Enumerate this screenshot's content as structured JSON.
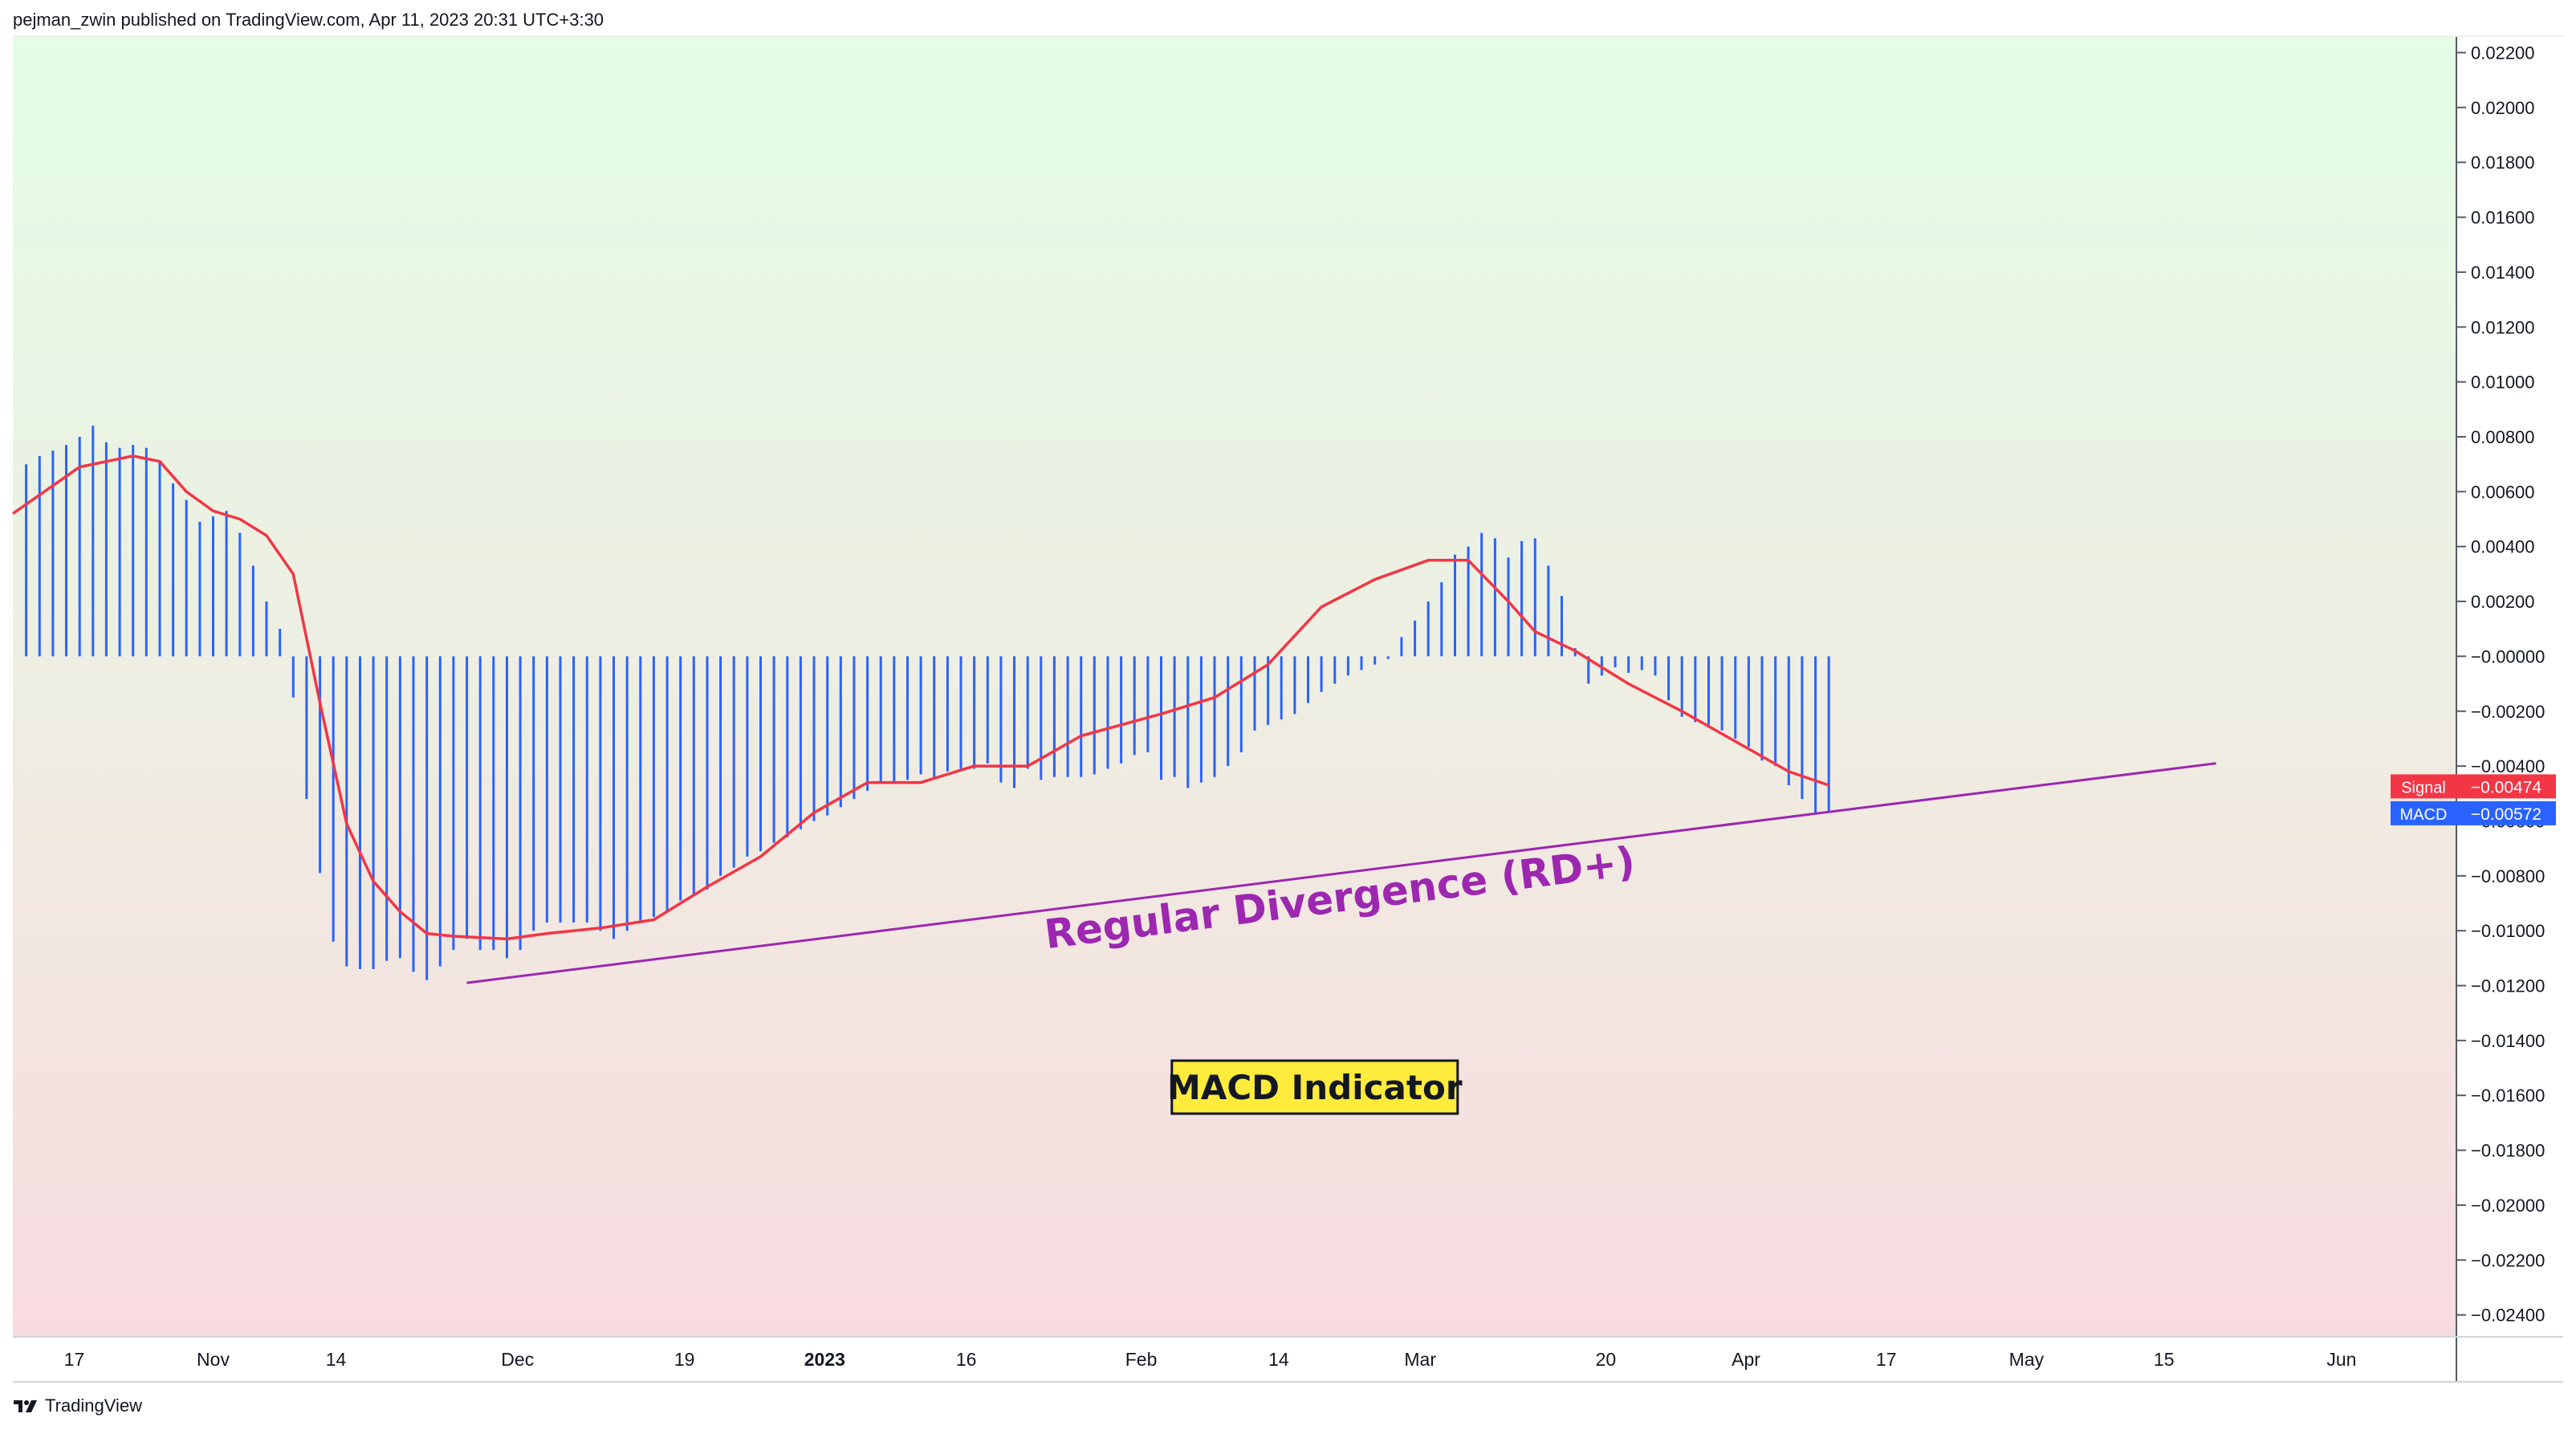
{
  "header": {
    "published_by": "pejman_zwin published on TradingView.com, Apr 11, 2023 20:31 UTC+3:30"
  },
  "footer": {
    "brand": "TradingView",
    "logo_icon": "tradingview-logo-icon"
  },
  "colors": {
    "bg_top": "#e3fde6",
    "bg_mid": "#efece1",
    "bg_bottom": "#f8dbe0",
    "histogram": "#2962ff",
    "signal": "#f23645",
    "divergence": "#9c27b0",
    "annotation_bg": "#ffeb3b"
  },
  "chart_data": {
    "type": "bar",
    "series": [
      {
        "name": "MACD",
        "style": "histogram",
        "x": [
          1,
          2,
          3,
          4,
          5,
          6,
          7,
          8,
          9,
          10,
          11,
          12,
          13,
          14,
          15,
          16,
          17,
          18,
          19,
          20,
          21,
          22,
          23,
          24,
          25,
          26,
          27,
          28,
          29,
          30,
          31,
          32,
          33,
          34,
          35,
          36,
          37,
          38,
          39,
          40,
          41,
          42,
          43,
          44,
          45,
          46,
          47,
          48,
          49,
          50,
          51,
          52,
          53,
          54,
          55,
          56,
          57,
          58,
          59,
          60,
          61,
          62,
          63,
          64,
          65,
          66,
          67,
          68,
          69,
          70,
          71,
          72,
          73,
          74,
          75,
          76,
          77,
          78,
          79,
          80,
          81,
          82,
          83,
          84,
          85,
          86,
          87,
          88,
          89,
          90,
          91,
          92,
          93,
          94,
          95,
          96,
          97,
          98,
          99,
          100,
          101,
          102,
          103,
          104,
          105,
          106,
          107,
          108,
          109,
          110,
          111,
          112,
          113,
          114,
          115,
          116,
          117,
          118,
          119,
          120,
          121,
          122,
          123,
          124,
          125,
          126,
          127,
          128,
          129,
          130,
          131,
          132,
          133,
          134,
          135,
          136
        ],
        "values": [
          0.007,
          0.0073,
          0.0075,
          0.0077,
          0.008,
          0.0084,
          0.0078,
          0.0076,
          0.0077,
          0.0076,
          0.0071,
          0.0063,
          0.0057,
          0.0049,
          0.0051,
          0.0053,
          0.0045,
          0.0033,
          0.002,
          0.001,
          -0.0015,
          -0.0052,
          -0.0079,
          -0.0104,
          -0.0113,
          -0.0114,
          -0.0114,
          -0.0111,
          -0.011,
          -0.0115,
          -0.0118,
          -0.0113,
          -0.0107,
          -0.0103,
          -0.0107,
          -0.0107,
          -0.011,
          -0.0107,
          -0.01,
          -0.0097,
          -0.0097,
          -0.0097,
          -0.0097,
          -0.01,
          -0.0103,
          -0.01,
          -0.0097,
          -0.0095,
          -0.0093,
          -0.0089,
          -0.0087,
          -0.0085,
          -0.008,
          -0.0077,
          -0.0073,
          -0.0071,
          -0.0068,
          -0.0066,
          -0.0063,
          -0.006,
          -0.0058,
          -0.0055,
          -0.0052,
          -0.0049,
          -0.0046,
          -0.0046,
          -0.0045,
          -0.0043,
          -0.0044,
          -0.0042,
          -0.0041,
          -0.0041,
          -0.0039,
          -0.0046,
          -0.0048,
          -0.0041,
          -0.0045,
          -0.0044,
          -0.0044,
          -0.0044,
          -0.0043,
          -0.0041,
          -0.0039,
          -0.0036,
          -0.0035,
          -0.0045,
          -0.0044,
          -0.0048,
          -0.0046,
          -0.0044,
          -0.004,
          -0.0035,
          -0.0027,
          -0.0025,
          -0.0023,
          -0.0021,
          -0.0017,
          -0.0013,
          -0.001,
          -0.0007,
          -0.0005,
          -0.0003,
          -0.0001,
          0.0007,
          0.0013,
          0.002,
          0.0027,
          0.0037,
          0.004,
          0.0045,
          0.0043,
          0.0036,
          0.0042,
          0.0043,
          0.0033,
          0.0022,
          0.0003,
          -0.001,
          -0.0007,
          -0.0004,
          -0.0006,
          -0.0005,
          -0.0007,
          -0.0016,
          -0.0022,
          -0.0024,
          -0.0025,
          -0.0027,
          -0.003,
          -0.0033,
          -0.0038,
          -0.004,
          -0.0047,
          -0.0052,
          -0.0057,
          -0.0057
        ]
      },
      {
        "name": "Signal",
        "style": "line",
        "x": [
          0,
          5,
          9,
          11,
          13,
          15,
          17,
          19,
          21,
          23,
          25,
          27,
          29,
          31,
          33,
          37,
          40,
          44,
          48,
          52,
          56,
          60,
          64,
          68,
          72,
          76,
          80,
          83,
          86,
          90,
          94,
          98,
          102,
          106,
          109,
          112,
          114,
          117,
          121,
          125,
          129,
          133,
          136
        ],
        "values": [
          0.0052,
          0.0069,
          0.0073,
          0.0071,
          0.006,
          0.0053,
          0.005,
          0.0044,
          0.003,
          -0.0017,
          -0.0061,
          -0.0082,
          -0.0093,
          -0.0101,
          -0.0102,
          -0.0103,
          -0.0101,
          -0.0099,
          -0.0096,
          -0.0084,
          -0.0073,
          -0.0057,
          -0.0046,
          -0.0046,
          -0.004,
          -0.004,
          -0.0029,
          -0.0025,
          -0.0021,
          -0.0015,
          -0.0003,
          0.0018,
          0.0028,
          0.0035,
          0.0035,
          0.002,
          0.0009,
          0.0002,
          -0.001,
          -0.002,
          -0.0031,
          -0.0042,
          -0.0047
        ]
      }
    ],
    "x_ticks": [
      {
        "x": 4.6,
        "label": "17"
      },
      {
        "x": 15.0,
        "label": "Nov"
      },
      {
        "x": 24.2,
        "label": "14"
      },
      {
        "x": 37.8,
        "label": "Dec"
      },
      {
        "x": 50.3,
        "label": "19"
      },
      {
        "x": 60.8,
        "label": "2023"
      },
      {
        "x": 71.4,
        "label": "16"
      },
      {
        "x": 84.5,
        "label": "Feb"
      },
      {
        "x": 94.8,
        "label": "14"
      },
      {
        "x": 105.4,
        "label": "Mar"
      },
      {
        "x": 119.3,
        "label": "20"
      },
      {
        "x": 129.8,
        "label": "Apr"
      },
      {
        "x": 140.3,
        "label": "17"
      },
      {
        "x": 150.8,
        "label": "May"
      },
      {
        "x": 161.1,
        "label": "15"
      },
      {
        "x": 174.4,
        "label": "Jun"
      }
    ],
    "y_ticks": [
      "0.02200",
      "0.02000",
      "0.01800",
      "0.01600",
      "0.01400",
      "0.01200",
      "0.01000",
      "0.00800",
      "0.00600",
      "0.00400",
      "0.00200",
      "−0.00000",
      "−0.00200",
      "−0.00400",
      "−0.00600",
      "−0.00800",
      "−0.01000",
      "−0.01200",
      "−0.01400",
      "−0.01600",
      "−0.01800",
      "−0.02000",
      "−0.02200",
      "−0.02400"
    ],
    "y_tick_values": [
      0.022,
      0.02,
      0.018,
      0.016,
      0.014,
      0.012,
      0.01,
      0.008,
      0.006,
      0.004,
      0.002,
      0,
      -0.002,
      -0.004,
      -0.006,
      -0.008,
      -0.01,
      -0.012,
      -0.014,
      -0.016,
      -0.018,
      -0.02,
      -0.022,
      -0.024
    ],
    "xlim": [
      0,
      183
    ],
    "ylim": [
      -0.0248,
      0.0226
    ],
    "price_labels": [
      {
        "name": "Signal",
        "text": "−0.00474",
        "value": -0.00474
      },
      {
        "name": "MACD",
        "text": "−0.00572",
        "value": -0.00572
      }
    ],
    "trendline": {
      "x1": 34,
      "y1": -0.0119,
      "x2": 165,
      "y2": -0.0039
    },
    "annotations": [
      {
        "id": "divergence",
        "text": "Regular Divergence (RD+)",
        "x": 99.5,
        "y": -0.0093
      },
      {
        "id": "indicator",
        "text": "MACD Indicator",
        "x": 97.5,
        "y": -0.0157
      }
    ],
    "grid": false
  }
}
